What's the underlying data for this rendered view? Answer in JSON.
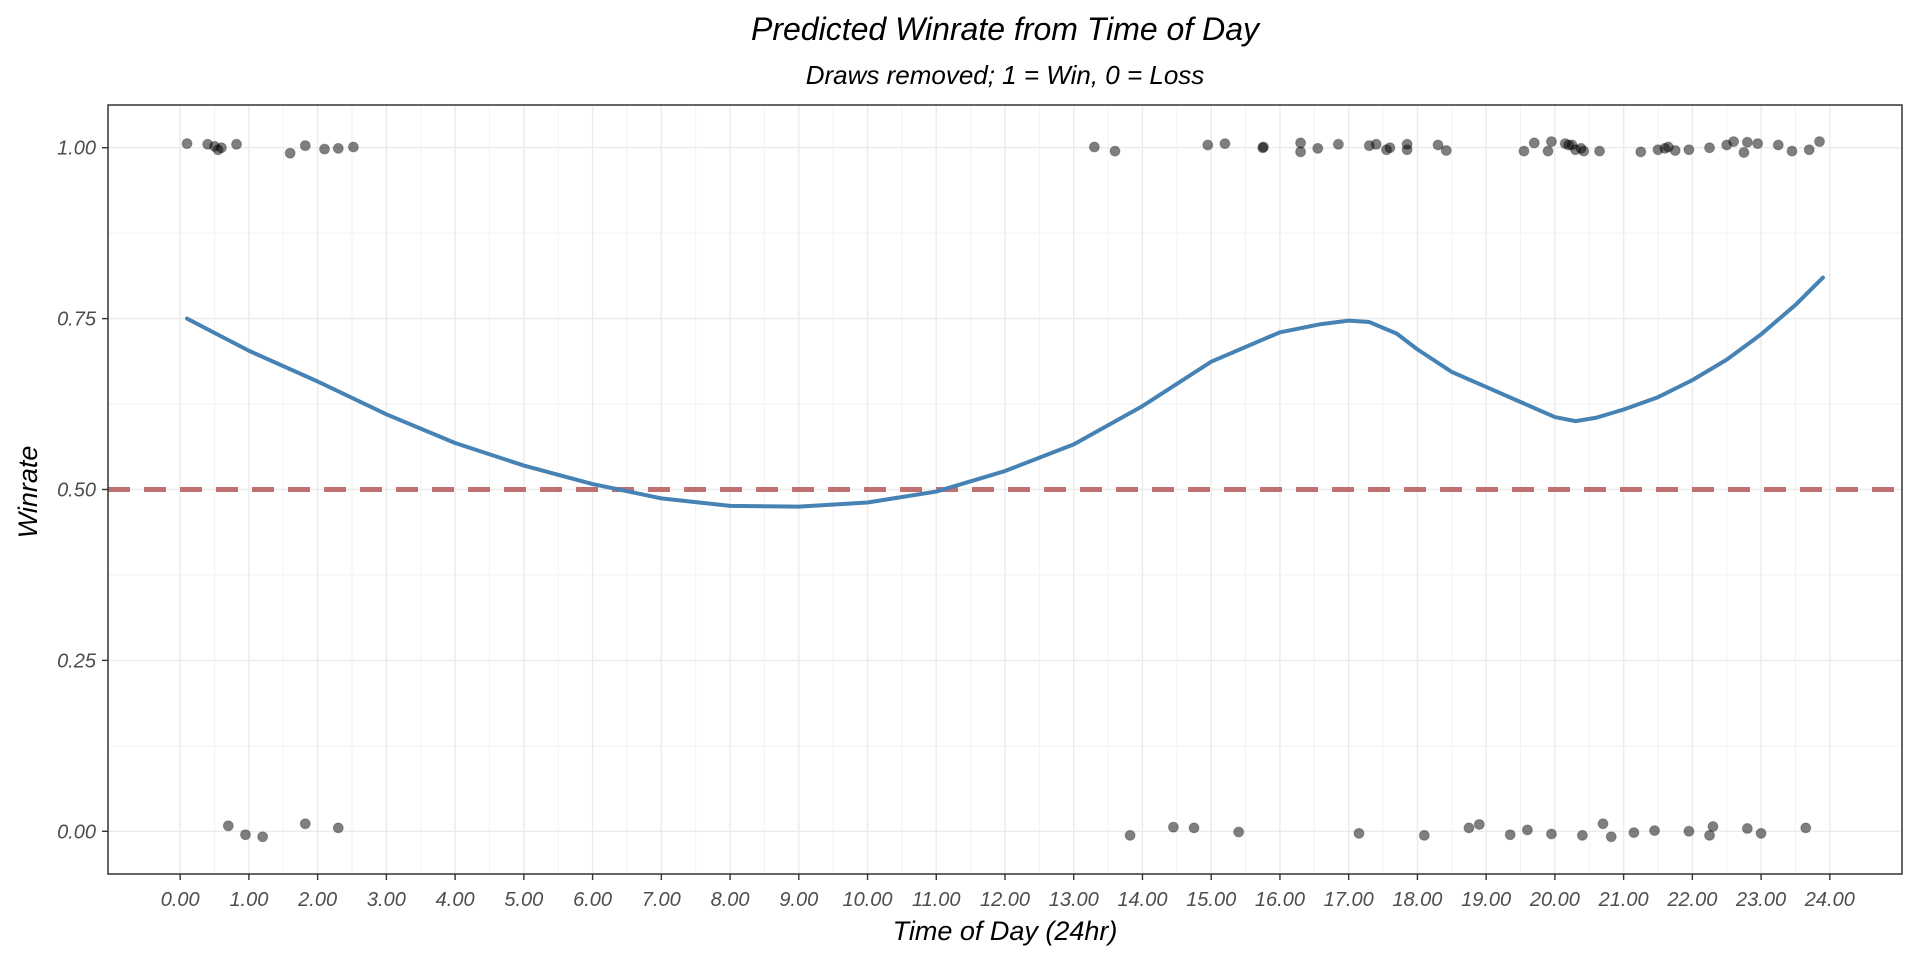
{
  "chart_data": {
    "type": "scatter",
    "title": "Predicted Winrate from Time of Day",
    "subtitle": "Draws removed; 1 = Win, 0 = Loss",
    "xlabel": "Time of Day (24hr)",
    "ylabel": "Winrate",
    "xlim": [
      -1.05,
      25.05
    ],
    "ylim": [
      -0.0625,
      1.0625
    ],
    "x_ticks": [
      0,
      1,
      2,
      3,
      4,
      5,
      6,
      7,
      8,
      9,
      10,
      11,
      12,
      13,
      14,
      15,
      16,
      17,
      18,
      19,
      20,
      21,
      22,
      23,
      24
    ],
    "x_tick_labels": [
      "0.00",
      "1.00",
      "2.00",
      "3.00",
      "4.00",
      "5.00",
      "6.00",
      "7.00",
      "8.00",
      "9.00",
      "10.00",
      "11.00",
      "12.00",
      "13.00",
      "14.00",
      "15.00",
      "16.00",
      "17.00",
      "18.00",
      "19.00",
      "20.00",
      "21.00",
      "22.00",
      "23.00",
      "24.00"
    ],
    "y_ticks": [
      0,
      0.25,
      0.5,
      0.75,
      1
    ],
    "y_tick_labels": [
      "0.00",
      "0.25",
      "0.50",
      "0.75",
      "1.00"
    ],
    "grid": true,
    "reference_line": {
      "y": 0.5,
      "style": "dashed",
      "color": "#c0706e"
    },
    "series": [
      {
        "type": "scatter",
        "color": "#000000",
        "opacity": 0.5,
        "points": [
          [
            0.1,
            1.006
          ],
          [
            0.4,
            1.005
          ],
          [
            0.5,
            1.002
          ],
          [
            0.55,
            0.997
          ],
          [
            0.6,
            1.0
          ],
          [
            0.82,
            1.005
          ],
          [
            1.6,
            0.992
          ],
          [
            1.82,
            1.003
          ],
          [
            2.1,
            0.998
          ],
          [
            2.3,
            0.999
          ],
          [
            2.52,
            1.001
          ],
          [
            13.3,
            1.001
          ],
          [
            13.6,
            0.995
          ],
          [
            14.95,
            1.004
          ],
          [
            15.2,
            1.006
          ],
          [
            15.75,
            1.0
          ],
          [
            15.76,
            1.001
          ],
          [
            16.3,
            1.007
          ],
          [
            16.3,
            0.994
          ],
          [
            16.55,
            0.999
          ],
          [
            16.85,
            1.005
          ],
          [
            17.3,
            1.003
          ],
          [
            17.4,
            1.005
          ],
          [
            17.55,
            0.997
          ],
          [
            17.6,
            1.0
          ],
          [
            17.85,
            0.997
          ],
          [
            17.85,
            1.005
          ],
          [
            18.3,
            1.004
          ],
          [
            18.42,
            0.996
          ],
          [
            19.55,
            0.995
          ],
          [
            19.7,
            1.007
          ],
          [
            19.9,
            0.995
          ],
          [
            19.95,
            1.009
          ],
          [
            20.15,
            1.006
          ],
          [
            20.2,
            1.004
          ],
          [
            20.25,
            1.004
          ],
          [
            20.3,
            0.997
          ],
          [
            20.38,
            0.999
          ],
          [
            20.42,
            0.995
          ],
          [
            20.65,
            0.995
          ],
          [
            21.25,
            0.994
          ],
          [
            21.5,
            0.997
          ],
          [
            21.6,
            0.999
          ],
          [
            21.65,
            1.001
          ],
          [
            21.75,
            0.996
          ],
          [
            21.95,
            0.997
          ],
          [
            22.25,
            1.0
          ],
          [
            22.5,
            1.004
          ],
          [
            22.6,
            1.009
          ],
          [
            22.75,
            0.993
          ],
          [
            22.8,
            1.008
          ],
          [
            22.95,
            1.006
          ],
          [
            23.25,
            1.004
          ],
          [
            23.45,
            0.995
          ],
          [
            23.7,
            0.997
          ],
          [
            23.85,
            1.009
          ],
          [
            0.7,
            0.008
          ],
          [
            0.95,
            -0.005
          ],
          [
            1.2,
            -0.008
          ],
          [
            1.82,
            0.011
          ],
          [
            2.3,
            0.005
          ],
          [
            13.82,
            -0.006
          ],
          [
            14.45,
            0.006
          ],
          [
            14.75,
            0.005
          ],
          [
            15.4,
            -0.001
          ],
          [
            17.15,
            -0.003
          ],
          [
            18.1,
            -0.006
          ],
          [
            18.75,
            0.005
          ],
          [
            18.9,
            0.01
          ],
          [
            19.35,
            -0.005
          ],
          [
            19.6,
            0.002
          ],
          [
            19.95,
            -0.004
          ],
          [
            20.4,
            -0.006
          ],
          [
            20.7,
            0.011
          ],
          [
            20.82,
            -0.008
          ],
          [
            21.15,
            -0.002
          ],
          [
            21.45,
            0.001
          ],
          [
            21.95,
            0.0
          ],
          [
            22.25,
            -0.006
          ],
          [
            22.3,
            0.007
          ],
          [
            22.8,
            0.004
          ],
          [
            23.0,
            -0.003
          ],
          [
            23.65,
            0.005
          ]
        ]
      },
      {
        "type": "line",
        "color": "#4682b4",
        "points": [
          [
            0.1,
            0.75
          ],
          [
            1.0,
            0.703
          ],
          [
            2.0,
            0.658
          ],
          [
            3.0,
            0.61
          ],
          [
            4.0,
            0.568
          ],
          [
            5.0,
            0.535
          ],
          [
            6.0,
            0.508
          ],
          [
            7.0,
            0.487
          ],
          [
            8.0,
            0.476
          ],
          [
            9.0,
            0.475
          ],
          [
            10.0,
            0.481
          ],
          [
            11.0,
            0.497
          ],
          [
            12.0,
            0.527
          ],
          [
            13.0,
            0.566
          ],
          [
            14.0,
            0.622
          ],
          [
            15.0,
            0.687
          ],
          [
            16.0,
            0.73
          ],
          [
            16.6,
            0.742
          ],
          [
            17.0,
            0.747
          ],
          [
            17.3,
            0.745
          ],
          [
            17.7,
            0.728
          ],
          [
            18.0,
            0.705
          ],
          [
            18.5,
            0.672
          ],
          [
            19.0,
            0.65
          ],
          [
            19.5,
            0.628
          ],
          [
            20.0,
            0.606
          ],
          [
            20.3,
            0.6
          ],
          [
            20.6,
            0.605
          ],
          [
            21.0,
            0.617
          ],
          [
            21.5,
            0.635
          ],
          [
            22.0,
            0.66
          ],
          [
            22.5,
            0.69
          ],
          [
            23.0,
            0.727
          ],
          [
            23.5,
            0.77
          ],
          [
            23.9,
            0.81
          ]
        ]
      }
    ]
  }
}
